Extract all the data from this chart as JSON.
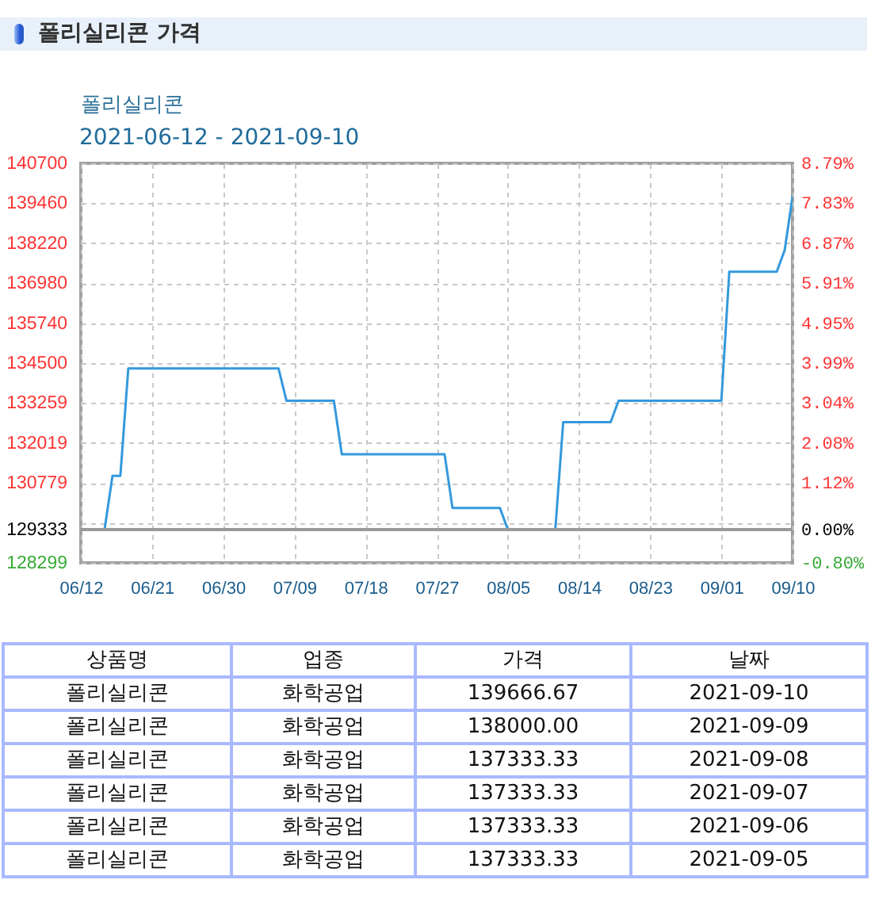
{
  "chart_data": [
    {
      "type": "line",
      "title": "폴리실리콘 가격",
      "subtitle": "폴리실리콘",
      "annotations": [
        "2021-06-12 - 2021-09-10"
      ],
      "x": [
        "2021-06-12",
        "2021-06-15",
        "2021-06-16",
        "2021-06-17",
        "2021-06-18",
        "2021-07-07",
        "2021-07-08",
        "2021-07-14",
        "2021-07-15",
        "2021-07-28",
        "2021-07-29",
        "2021-08-04",
        "2021-08-05",
        "2021-08-11",
        "2021-08-12",
        "2021-08-18",
        "2021-08-19",
        "2021-09-01",
        "2021-09-02",
        "2021-09-05",
        "2021-09-06",
        "2021-09-07",
        "2021-09-08",
        "2021-09-09",
        "2021-09-10"
      ],
      "series": [
        {
          "color": "#3399dd",
          "values": [
            129333,
            129333,
            131000,
            131000,
            134333,
            134333,
            133333,
            133333,
            131667,
            131667,
            130000,
            130000,
            129333,
            129333,
            132667,
            132667,
            133333,
            133333,
            137333.33,
            137333.33,
            137333.33,
            137333.33,
            137333.33,
            138000,
            139666.67
          ]
        }
      ],
      "xlim": [
        "2021-06-12",
        "2021-09-10"
      ],
      "xticks": [
        {
          "value": "2021-06-12",
          "label": "06/12"
        },
        {
          "value": "2021-06-21",
          "label": "06/21"
        },
        {
          "value": "2021-06-30",
          "label": "06/30"
        },
        {
          "value": "2021-07-09",
          "label": "07/09"
        },
        {
          "value": "2021-07-18",
          "label": "07/18"
        },
        {
          "value": "2021-07-27",
          "label": "07/27"
        },
        {
          "value": "2021-08-05",
          "label": "08/05"
        },
        {
          "value": "2021-08-14",
          "label": "08/14"
        },
        {
          "value": "2021-08-23",
          "label": "08/23"
        },
        {
          "value": "2021-09-01",
          "label": "09/01"
        },
        {
          "value": "2021-09-10",
          "label": "09/10"
        }
      ],
      "ylim": [
        128299,
        140700
      ],
      "yticks": [
        128299,
        129333,
        {
          "value": 129539,
          "label": null
        },
        130779,
        132019,
        133259,
        134500,
        135740,
        136980,
        138220,
        139460,
        140700
      ],
      "y2lim": [
        -0.8,
        8.79
      ],
      "y2ticks": [
        {
          "value": -0.8,
          "label": "-0.80%"
        },
        {
          "value": 0,
          "label": "0.00%"
        },
        {
          "value": 1.12,
          "label": "1.12%"
        },
        {
          "value": 2.08,
          "label": "2.08%"
        },
        {
          "value": 3.04,
          "label": "3.04%"
        },
        {
          "value": 3.99,
          "label": "3.99%"
        },
        {
          "value": 4.95,
          "label": "4.95%"
        },
        {
          "value": 5.91,
          "label": "5.91%"
        },
        {
          "value": 6.87,
          "label": "6.87%"
        },
        {
          "value": 7.83,
          "label": "7.83%"
        },
        {
          "value": 8.79,
          "label": "8.79%"
        }
      ],
      "ref_lines": [
        {
          "axis": "y",
          "value": 129333,
          "color": "#999999"
        }
      ],
      "grid": true
    },
    {
      "type": "other",
      "categories": [
        "2021-09-10",
        "2021-09-09",
        "2021-09-08",
        "2021-09-07",
        "2021-09-06",
        "2021-09-05"
      ],
      "values": [
        139666.67,
        138000,
        137333.33,
        137333.33,
        137333.33,
        137333.33
      ],
      "value_labels": [
        "139666.67",
        "138000.00",
        "137333.33",
        "137333.33",
        "137333.33",
        "137333.33"
      ],
      "annotations": [
        "상품명",
        "업종",
        "가격",
        "날짜",
        "폴리실리콘",
        "화학공업"
      ]
    }
  ]
}
